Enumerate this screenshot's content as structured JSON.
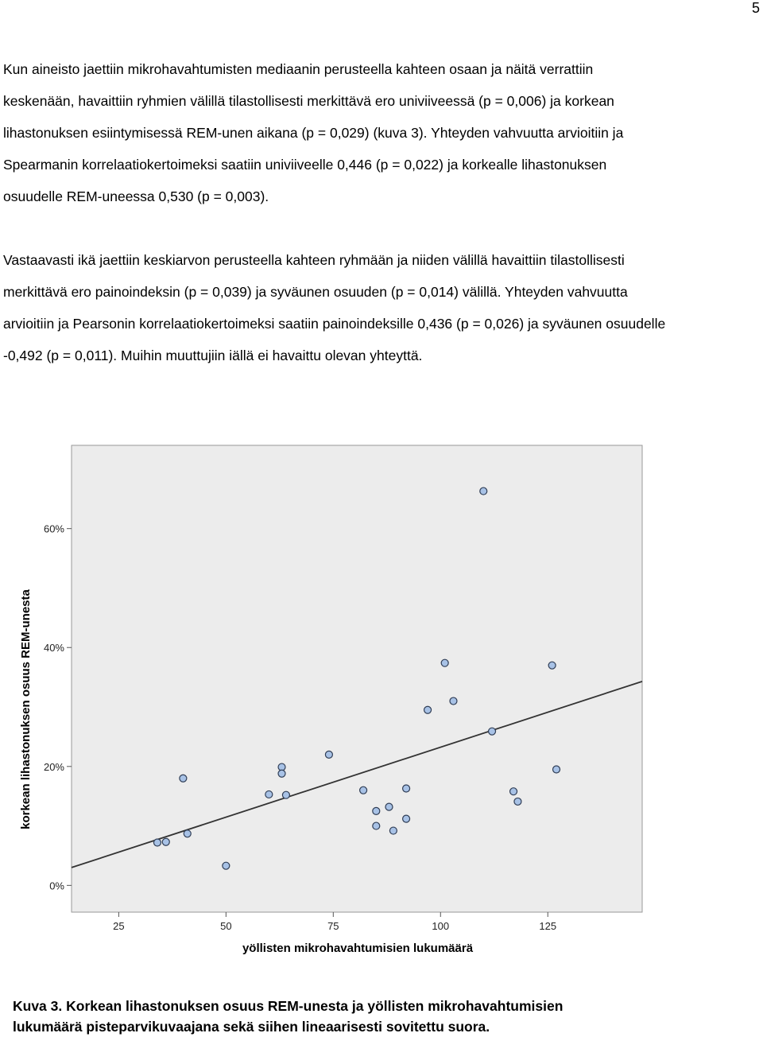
{
  "page_number": "5",
  "paragraphs": [
    {
      "lines": [
        "Kun aineisto jaettiin mikrohavahtumisten mediaanin perusteella kahteen osaan ja näitä verrattiin",
        "keskenään, havaittiin ryhmien välillä tilastollisesti merkittävä ero univiiveessä (p = 0,006) ja korkean",
        "lihastonuksen esiintymisessä REM-unen aikana (p = 0,029) (kuva 3). Yhteyden vahvuutta arvioitiin ja",
        "Spearmanin korrelaatiokertoimeksi saatiin univiiveelle 0,446 (p = 0,022) ja korkealle lihastonuksen",
        "osuudelle REM-uneessa 0,530 (p = 0,003)."
      ]
    },
    {
      "lines": [
        "Vastaavasti ikä jaettiin keskiarvon perusteella kahteen ryhmään ja niiden välillä havaittiin tilastollisesti",
        "merkittävä ero painoindeksin (p = 0,039) ja syväunen osuuden (p = 0,014) välillä. Yhteyden vahvuutta",
        "arvioitiin ja Pearsonin korrelaatiokertoimeksi saatiin painoindeksille 0,436 (p = 0,026) ja syväunen osuudelle",
        "-0,492 (p = 0,011). Muihin muuttujiin iällä ei havaittu olevan yhteyttä."
      ]
    }
  ],
  "chart_data": {
    "type": "scatter",
    "xlabel": "yöllisten mikrohavahtumisien lukumäärä",
    "ylabel": "korkean lihastonuksen osuus REM-unesta",
    "xlim": [
      14,
      147
    ],
    "ylim": [
      -4.5,
      74
    ],
    "x_ticks": [
      25,
      50,
      75,
      100,
      125
    ],
    "x_tick_labels": [
      "25",
      "50",
      "75",
      "100",
      "125"
    ],
    "y_ticks": [
      0,
      20,
      40,
      60
    ],
    "y_tick_labels": [
      "0%",
      "20%",
      "40%",
      "60%"
    ],
    "grid": false,
    "points": [
      {
        "x": 34,
        "y": 7.2
      },
      {
        "x": 36,
        "y": 7.3
      },
      {
        "x": 40,
        "y": 18.0
      },
      {
        "x": 41,
        "y": 8.7
      },
      {
        "x": 50,
        "y": 3.3
      },
      {
        "x": 60,
        "y": 15.3
      },
      {
        "x": 63,
        "y": 19.9
      },
      {
        "x": 63,
        "y": 18.8
      },
      {
        "x": 64,
        "y": 15.2
      },
      {
        "x": 74,
        "y": 22.0
      },
      {
        "x": 82,
        "y": 16.0
      },
      {
        "x": 85,
        "y": 12.5
      },
      {
        "x": 85,
        "y": 10.0
      },
      {
        "x": 88,
        "y": 13.2
      },
      {
        "x": 89,
        "y": 9.2
      },
      {
        "x": 92,
        "y": 16.3
      },
      {
        "x": 92,
        "y": 11.2
      },
      {
        "x": 97,
        "y": 29.5
      },
      {
        "x": 101,
        "y": 37.4
      },
      {
        "x": 103,
        "y": 31.0
      },
      {
        "x": 110,
        "y": 66.3
      },
      {
        "x": 112,
        "y": 25.9
      },
      {
        "x": 117,
        "y": 15.8
      },
      {
        "x": 118,
        "y": 14.1
      },
      {
        "x": 126,
        "y": 37.0
      },
      {
        "x": 127,
        "y": 19.5
      }
    ],
    "fit_line": {
      "x": [
        14,
        147
      ],
      "y": [
        3.0,
        34.3
      ]
    },
    "colors": {
      "plot_background": "#ececec",
      "point_fill": "#a8c2e6",
      "point_stroke": "#2f3d55",
      "fit_line": "#333333"
    }
  },
  "caption": {
    "lines": [
      "Kuva 3. Korkean lihastonuksen osuus REM-unesta ja yöllisten mikrohavahtumisien",
      "lukumäärä pisteparvikuvaajana sekä siihen lineaarisesti sovitettu suora."
    ]
  }
}
